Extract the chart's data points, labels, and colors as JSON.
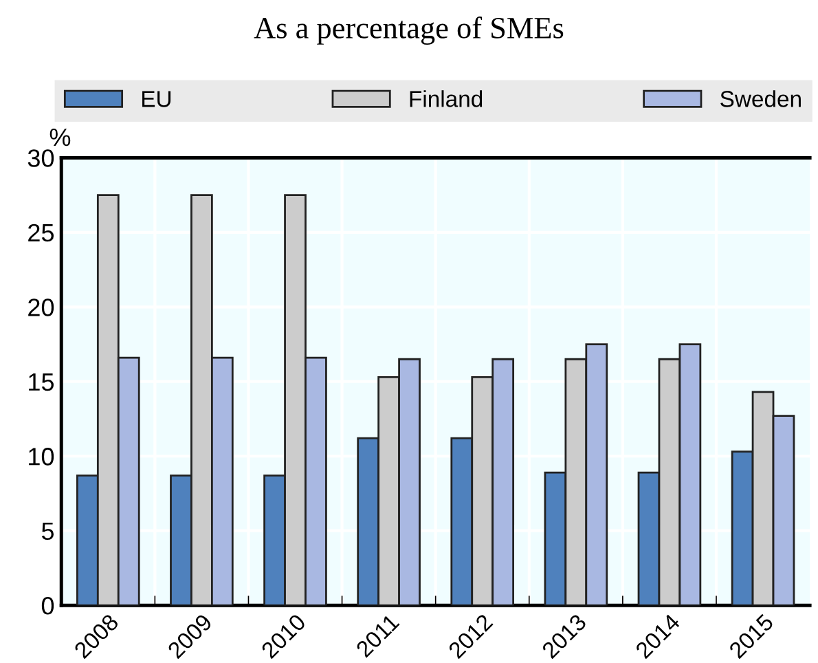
{
  "chart_data": {
    "type": "bar",
    "title": "As a percentage of SMEs",
    "ylabel": "%",
    "categories": [
      "2008",
      "2009",
      "2010",
      "2011",
      "2012",
      "2013",
      "2014",
      "2015"
    ],
    "series": [
      {
        "name": "EU",
        "color": "#4f81bd",
        "values": [
          8.7,
          8.7,
          8.7,
          11.2,
          11.2,
          8.9,
          8.9,
          10.3
        ]
      },
      {
        "name": "Finland",
        "color": "#cccccc",
        "values": [
          27.5,
          27.5,
          27.5,
          15.3,
          15.3,
          16.5,
          16.5,
          14.3
        ]
      },
      {
        "name": "Sweden",
        "color": "#a9b8e2",
        "values": [
          16.6,
          16.6,
          16.6,
          16.5,
          16.5,
          17.5,
          17.5,
          12.7
        ]
      }
    ],
    "ylim": [
      0,
      30
    ],
    "yticks": [
      0,
      5,
      10,
      15,
      20,
      25,
      30
    ],
    "grid": true,
    "legend": "top"
  }
}
